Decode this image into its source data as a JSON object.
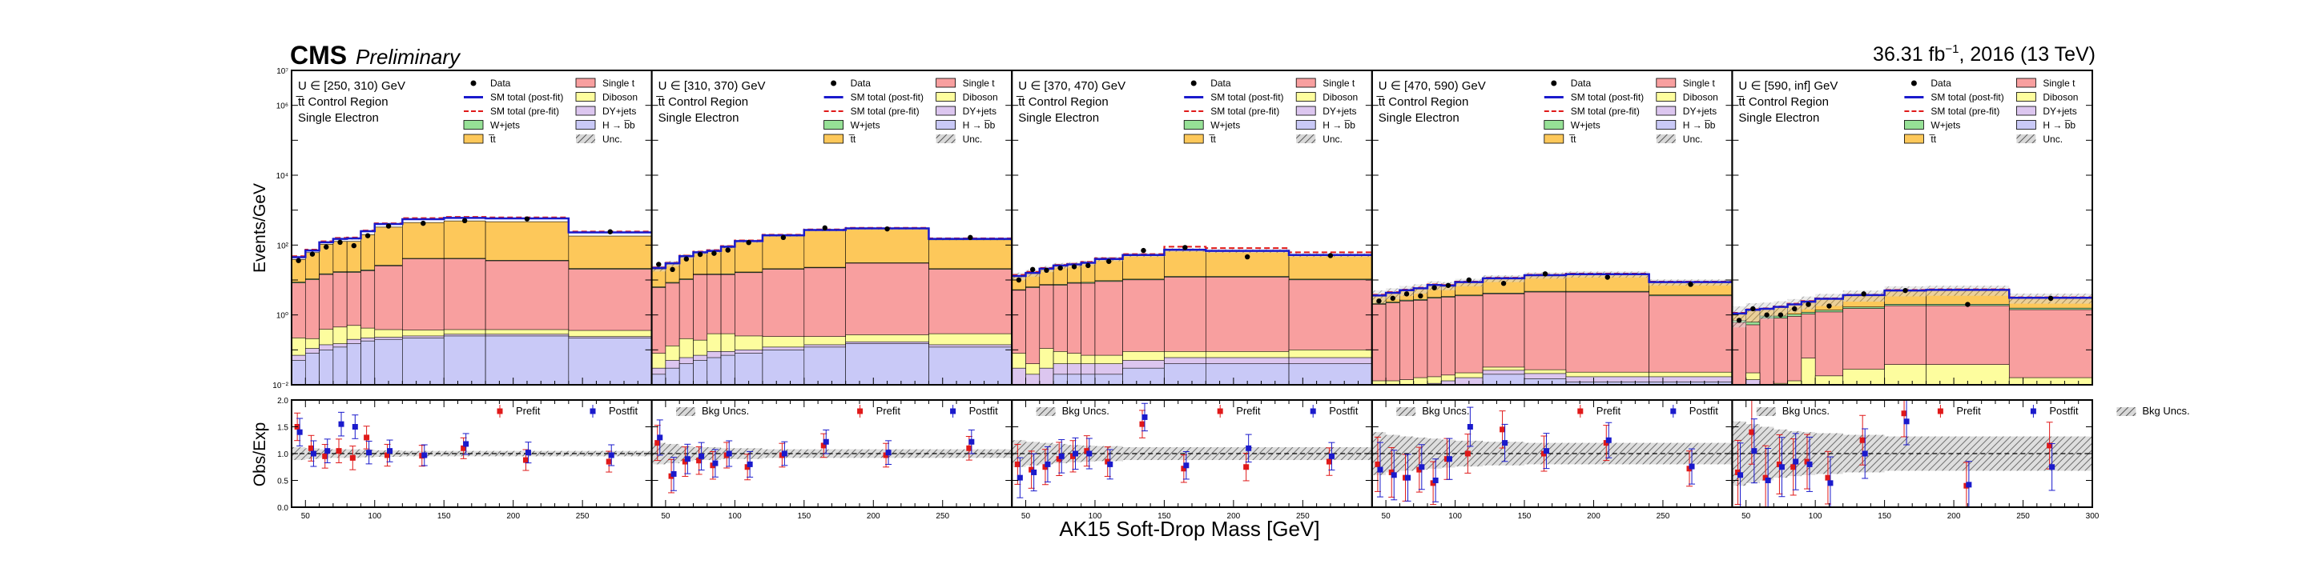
{
  "header": {
    "experiment": "CMS",
    "status": "Preliminary",
    "lumi_prefix": "36.31 fb",
    "lumi_exp": "−1",
    "lumi_suffix": ", 2016 (13 TeV)"
  },
  "axes": {
    "ylabel_top": "Events/GeV",
    "ylabel_ratio": "Obs/Exp",
    "xlabel": "AK15 Soft-Drop Mass [GeV]"
  },
  "colors": {
    "single_t": "#f89f9f",
    "diboson": "#fdfd9e",
    "dy_jets": "#dcc6ef",
    "h_bb": "#c9c9f7",
    "w_jets": "#96e196",
    "ttbar": "#fdc85a",
    "data": "#000000",
    "post_fit": "#1a1acc",
    "pre_fit": "#e01919",
    "unc": "#888888"
  },
  "chart_data": {
    "type": "bar",
    "stacked": true,
    "y_scale": "log",
    "ylim": [
      0.01,
      10000000
    ],
    "y_ticks": [
      "10⁻²",
      "10⁰",
      "10²",
      "10⁴",
      "10⁶",
      "10⁷"
    ],
    "ratio_ylim": [
      0.0,
      2.0
    ],
    "ratio_ticks": [
      "0.0",
      "0.5",
      "1.0",
      "1.5",
      "2.0"
    ],
    "x_ticks": [
      "50",
      "100",
      "150",
      "200",
      "250",
      "300"
    ],
    "xlim": [
      40,
      300
    ],
    "region": "t̅t Control Region",
    "channel": "Single Electron",
    "bin_edges": [
      40,
      50,
      60,
      70,
      80,
      90,
      100,
      120,
      150,
      180,
      240,
      300
    ],
    "legend_left": [
      {
        "key": "data",
        "label": "Data",
        "style": "marker"
      },
      {
        "key": "post_fit",
        "label": "SM total (post-fit)",
        "style": "line"
      },
      {
        "key": "pre_fit",
        "label": "SM total (pre-fit)",
        "style": "dashed"
      },
      {
        "key": "w_jets",
        "label": "W+jets",
        "style": "box"
      },
      {
        "key": "ttbar",
        "label": "t̅t",
        "style": "box"
      }
    ],
    "legend_right": [
      {
        "key": "single_t",
        "label": "Single t",
        "style": "box"
      },
      {
        "key": "diboson",
        "label": "Diboson",
        "style": "box"
      },
      {
        "key": "dy_jets",
        "label": "DY+jets",
        "style": "box"
      },
      {
        "key": "h_bb",
        "label": "H → b̅b",
        "style": "box"
      },
      {
        "key": "unc",
        "label": "Unc.",
        "style": "hatch"
      }
    ],
    "ratio_legend": [
      {
        "key": "pre_fit",
        "label": "Prefit"
      },
      {
        "key": "post_fit",
        "label": "Postfit"
      },
      {
        "key": "unc",
        "label": "Bkg Uncs."
      }
    ],
    "panels": [
      {
        "label": "U ∈ [250, 310) GeV",
        "stack": {
          "h_bb": [
            0.05,
            0.08,
            0.1,
            0.12,
            0.15,
            0.18,
            0.2,
            0.22,
            0.25,
            0.25,
            0.22
          ],
          "dy_jets": [
            0.02,
            0.03,
            0.04,
            0.03,
            0.05,
            0.04,
            0.03,
            0.03,
            0.03,
            0.03,
            0.02
          ],
          "diboson": [
            0.15,
            0.1,
            0.25,
            0.3,
            0.3,
            0.2,
            0.15,
            0.12,
            0.1,
            0.1,
            0.12
          ],
          "single_t": [
            8,
            10,
            14,
            16,
            16,
            18,
            25,
            40,
            40,
            35,
            20
          ],
          "w_jets": [
            0.5,
            0.6,
            0.7,
            0.8,
            0.9,
            1,
            1.1,
            1.2,
            1.3,
            1.2,
            1
          ],
          "ttbar": [
            30,
            50,
            90,
            110,
            110,
            180,
            300,
            400,
            450,
            430,
            160
          ]
        },
        "post_fit": [
          45,
          70,
          120,
          150,
          155,
          250,
          400,
          550,
          600,
          580,
          230
        ],
        "pre_fit": [
          48,
          74,
          128,
          160,
          165,
          262,
          420,
          590,
          640,
          620,
          245
        ],
        "data": [
          36,
          55,
          88,
          120,
          96,
          185,
          350,
          420,
          500,
          560,
          240
        ],
        "ratio_prefit": [
          1.5,
          1.1,
          0.95,
          1.05,
          0.92,
          1.3,
          0.97,
          0.96,
          1.1,
          0.88,
          0.85
        ],
        "ratio_postfit": [
          1.4,
          1.0,
          1.05,
          1.55,
          1.5,
          1.02,
          1.05,
          0.97,
          1.18,
          1.02,
          0.97
        ],
        "ratio_unc": [
          0.12,
          0.1,
          0.08,
          0.08,
          0.08,
          0.07,
          0.06,
          0.05,
          0.05,
          0.05,
          0.05
        ]
      },
      {
        "label": "U ∈ [310, 370) GeV",
        "stack": {
          "h_bb": [
            0.02,
            0.03,
            0.04,
            0.05,
            0.06,
            0.07,
            0.08,
            0.1,
            0.12,
            0.15,
            0.12
          ],
          "dy_jets": [
            0.01,
            0.02,
            0.02,
            0.02,
            0.03,
            0.02,
            0.02,
            0.02,
            0.02,
            0.02,
            0.02
          ],
          "diboson": [
            0.05,
            0.08,
            0.15,
            0.12,
            0.2,
            0.2,
            0.15,
            0.12,
            0.1,
            0.1,
            0.15
          ],
          "single_t": [
            6,
            8,
            10,
            14,
            14,
            14,
            16,
            20,
            22,
            30,
            20
          ],
          "w_jets": [
            0.3,
            0.4,
            0.5,
            0.5,
            0.6,
            0.7,
            0.7,
            0.8,
            0.9,
            0.9,
            0.8
          ],
          "ttbar": [
            14,
            20,
            35,
            45,
            50,
            70,
            110,
            160,
            240,
            260,
            120
          ]
        },
        "post_fit": [
          22,
          30,
          48,
          62,
          68,
          90,
          130,
          190,
          270,
          300,
          150
        ],
        "pre_fit": [
          23,
          31,
          50,
          65,
          72,
          94,
          136,
          198,
          280,
          312,
          156
        ],
        "data": [
          28,
          20,
          40,
          54,
          58,
          72,
          118,
          165,
          310,
          290,
          165
        ],
        "ratio_prefit": [
          1.2,
          0.58,
          0.85,
          0.87,
          0.78,
          0.97,
          0.75,
          0.97,
          1.15,
          0.97,
          1.1
        ],
        "ratio_postfit": [
          1.3,
          0.62,
          0.9,
          0.95,
          0.82,
          1.0,
          0.8,
          1.0,
          1.22,
          1.02,
          1.22
        ],
        "ratio_unc": [
          0.2,
          0.18,
          0.14,
          0.12,
          0.12,
          0.1,
          0.1,
          0.08,
          0.08,
          0.08,
          0.08
        ]
      },
      {
        "label": "U ∈ [370, 470) GeV",
        "stack": {
          "h_bb": [
            0.01,
            0.01,
            0.01,
            0.02,
            0.02,
            0.02,
            0.02,
            0.03,
            0.04,
            0.04,
            0.04
          ],
          "dy_jets": [
            0.02,
            0.01,
            0.02,
            0.02,
            0.02,
            0.02,
            0.02,
            0.02,
            0.02,
            0.02,
            0.02
          ],
          "diboson": [
            0.05,
            0.02,
            0.08,
            0.05,
            0.04,
            0.03,
            0.03,
            0.04,
            0.03,
            0.03,
            0.04
          ],
          "single_t": [
            5,
            6,
            7,
            7,
            8,
            8,
            9,
            10,
            12,
            12,
            10
          ],
          "w_jets": [
            0.2,
            0.3,
            0.3,
            0.4,
            0.4,
            0.5,
            0.5,
            0.5,
            0.6,
            0.6,
            0.5
          ],
          "ttbar": [
            8,
            10,
            14,
            18,
            20,
            22,
            30,
            40,
            60,
            55,
            40
          ]
        },
        "post_fit": [
          13,
          16,
          21,
          26,
          28,
          31,
          40,
          52,
          73,
          68,
          52
        ],
        "pre_fit": [
          14,
          17,
          22,
          27,
          29,
          33,
          42,
          55,
          90,
          82,
          62
        ],
        "data": [
          10,
          20,
          19,
          22,
          24,
          26,
          34,
          70,
          85,
          46,
          50
        ],
        "ratio_prefit": [
          0.8,
          0.7,
          0.75,
          0.9,
          0.95,
          1.05,
          0.85,
          1.55,
          0.72,
          0.75,
          0.85
        ],
        "ratio_postfit": [
          0.55,
          0.65,
          0.8,
          0.95,
          1.0,
          1.0,
          0.8,
          1.68,
          0.78,
          1.1,
          0.95
        ],
        "ratio_unc": [
          0.25,
          0.22,
          0.2,
          0.18,
          0.16,
          0.15,
          0.14,
          0.12,
          0.12,
          0.12,
          0.12
        ]
      },
      {
        "label": "U ∈ [470, 590) GeV",
        "stack": {
          "h_bb": [
            0.005,
            0.005,
            0.005,
            0.006,
            0.007,
            0.008,
            0.01,
            0.02,
            0.015,
            0.012,
            0.012
          ],
          "dy_jets": [
            0.003,
            0.003,
            0.003,
            0.004,
            0.004,
            0.005,
            0.006,
            0.006,
            0.006,
            0.005,
            0.005
          ],
          "diboson": [
            0.005,
            0.005,
            0.006,
            0.006,
            0.006,
            0.006,
            0.006,
            0.006,
            0.006,
            0.006,
            0.006
          ],
          "single_t": [
            2,
            2.2,
            2.5,
            2.6,
            3,
            3.2,
            3.5,
            4,
            4.5,
            4.5,
            3.5
          ],
          "w_jets": [
            0.1,
            0.12,
            0.14,
            0.15,
            0.16,
            0.17,
            0.18,
            0.2,
            0.22,
            0.22,
            0.2
          ],
          "ttbar": [
            1.5,
            2.0,
            2.5,
            3.0,
            4.0,
            3.5,
            5.0,
            7.0,
            9.0,
            10.0,
            5.0
          ]
        },
        "post_fit": [
          3.6,
          4.3,
          5.1,
          5.8,
          7.2,
          6.9,
          8.7,
          11.2,
          13.7,
          14.7,
          8.7
        ],
        "pre_fit": [
          3.8,
          4.5,
          5.3,
          6.0,
          7.5,
          7.2,
          9.0,
          11.6,
          14.2,
          15.2,
          9.0
        ],
        "data": [
          2.5,
          3.0,
          4.0,
          3.5,
          6.0,
          7.0,
          10.0,
          8.0,
          15.0,
          12.0,
          7.5
        ],
        "ratio_prefit": [
          0.8,
          0.65,
          0.55,
          0.7,
          0.45,
          0.9,
          1.0,
          1.45,
          1.0,
          1.2,
          0.72
        ],
        "ratio_postfit": [
          0.7,
          0.6,
          0.55,
          0.75,
          0.5,
          0.9,
          1.5,
          1.2,
          1.05,
          1.25,
          0.76
        ],
        "ratio_unc": [
          0.4,
          0.35,
          0.32,
          0.3,
          0.28,
          0.26,
          0.24,
          0.22,
          0.2,
          0.2,
          0.2
        ]
      },
      {
        "label": "U ∈ [590, inf] GeV",
        "stack": {
          "h_bb": [
            0.004,
            0.004,
            0.004,
            0.004,
            0.004,
            0.004,
            0.004,
            0.004,
            0.004,
            0.004,
            0.004
          ],
          "dy_jets": [
            0.003,
            0.01,
            0.003,
            0.004,
            0.004,
            0.004,
            0.004,
            0.004,
            0.004,
            0.004,
            0.004
          ],
          "diboson": [
            0.003,
            0.008,
            0.002,
            0.003,
            0.005,
            0.05,
            0.01,
            0.02,
            0.03,
            0.03,
            0.008
          ],
          "single_t": [
            0.6,
            0.5,
            0.8,
            0.8,
            0.9,
            1.0,
            1.2,
            1.5,
            1.8,
            1.8,
            1.4
          ],
          "w_jets": [
            0.08,
            0.1,
            0.12,
            0.12,
            0.14,
            0.14,
            0.15,
            0.16,
            0.18,
            0.18,
            0.15
          ],
          "ttbar": [
            0.4,
            0.8,
            0.6,
            0.8,
            1.0,
            1.2,
            1.5,
            2.0,
            3.0,
            3.2,
            1.5
          ]
        },
        "post_fit": [
          1.1,
          1.4,
          1.5,
          1.7,
          2.0,
          2.4,
          2.9,
          3.7,
          5.0,
          5.2,
          3.1
        ],
        "pre_fit": [
          1.15,
          1.45,
          1.55,
          1.75,
          2.1,
          2.5,
          3.0,
          3.8,
          5.2,
          5.4,
          3.2
        ],
        "data": [
          0.7,
          1.5,
          1.0,
          1.0,
          1.5,
          2.0,
          1.8,
          4.0,
          5.0,
          2.0,
          3.0
        ],
        "ratio_prefit": [
          0.65,
          1.4,
          0.55,
          0.8,
          0.75,
          0.85,
          0.55,
          1.25,
          1.75,
          0.4,
          1.15
        ],
        "ratio_postfit": [
          0.6,
          1.05,
          0.5,
          0.75,
          0.85,
          0.8,
          0.45,
          1.0,
          1.6,
          0.42,
          0.75
        ],
        "ratio_unc": [
          0.6,
          0.55,
          0.5,
          0.45,
          0.42,
          0.4,
          0.38,
          0.35,
          0.32,
          0.32,
          0.32
        ]
      }
    ]
  }
}
